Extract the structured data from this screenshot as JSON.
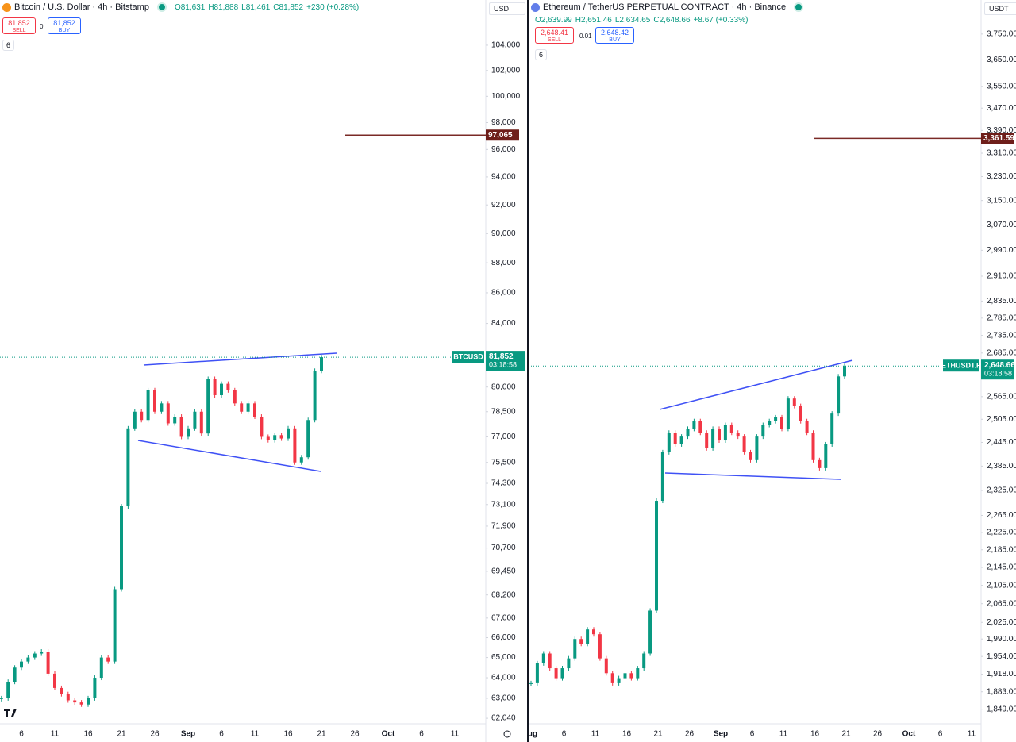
{
  "panels": [
    {
      "title": "Bitcoin / U.S. Dollar · 4h · Bitstamp",
      "ohlc": [
        "O81,631",
        "H81,888",
        "L81,461",
        "C81,852",
        "+230 (+0.28%)"
      ],
      "sell": {
        "price": "81,852",
        "label": "SELL"
      },
      "spread": "0",
      "buy": {
        "price": "81,852",
        "label": "BUY"
      },
      "indicators": "6",
      "currency": "USD",
      "chart_data": {
        "type": "candlestick",
        "scale": "log",
        "ylim": [
          61780,
          107670
        ],
        "yticks": [
          {
            "value": 104000,
            "label": "104,000"
          },
          {
            "value": 102000,
            "label": "102,000"
          },
          {
            "value": 100000,
            "label": "100,000"
          },
          {
            "value": 98000,
            "label": "98,000"
          },
          {
            "value": 96000,
            "label": "96,000"
          },
          {
            "value": 94000,
            "label": "94,000"
          },
          {
            "value": 92000,
            "label": "92,000"
          },
          {
            "value": 90000,
            "label": "90,000"
          },
          {
            "value": 88000,
            "label": "88,000"
          },
          {
            "value": 86000,
            "label": "86,000"
          },
          {
            "value": 84000,
            "label": "84,000"
          },
          {
            "value": 80000,
            "label": "80,000"
          },
          {
            "value": 78500,
            "label": "78,500"
          },
          {
            "value": 77000,
            "label": "77,000"
          },
          {
            "value": 75500,
            "label": "75,500"
          },
          {
            "value": 74300,
            "label": "74,300"
          },
          {
            "value": 73100,
            "label": "73,100"
          },
          {
            "value": 71900,
            "label": "71,900"
          },
          {
            "value": 70700,
            "label": "70,700"
          },
          {
            "value": 69450,
            "label": "69,450"
          },
          {
            "value": 68200,
            "label": "68,200"
          },
          {
            "value": 67000,
            "label": "67,000"
          },
          {
            "value": 66000,
            "label": "66,000"
          },
          {
            "value": 65000,
            "label": "65,000"
          },
          {
            "value": 64000,
            "label": "64,000"
          },
          {
            "value": 63000,
            "label": "63,000"
          },
          {
            "value": 62040,
            "label": "62,040"
          }
        ],
        "values": [
          63000,
          63800,
          64500,
          64800,
          65000,
          65200,
          65300,
          64200,
          63500,
          63200,
          62900,
          62800,
          62700,
          63000,
          64000,
          65000,
          64800,
          68500,
          73000,
          77500,
          78500,
          78000,
          79800,
          78500,
          79000,
          77800,
          78200,
          77000,
          77500,
          78500,
          77200,
          80500,
          79500,
          80200,
          79800,
          79000,
          78500,
          79000,
          78200,
          77000,
          76800,
          77100,
          76900,
          77500,
          75500,
          75800,
          78000,
          81000,
          81852
        ],
        "last_price": {
          "value": 81852,
          "label": "81,852"
        },
        "symbol": "BTCUSD",
        "countdown": "03:18:58",
        "alert": {
          "value": 97065,
          "label": "97,065"
        },
        "time_labels": [
          "6",
          "11",
          "16",
          "21",
          "26",
          "Sep",
          "6",
          "11",
          "16",
          "21",
          "26",
          "Oct",
          "6",
          "11"
        ]
      }
    },
    {
      "title": "Ethereum / TetherUS PERPETUAL CONTRACT · 4h · Binance",
      "ohlc": [
        "O2,639.99",
        "H2,651.46",
        "L2,634.65",
        "C2,648.66",
        "+8.67 (+0.33%)"
      ],
      "sell": {
        "price": "2,648.41",
        "label": "SELL"
      },
      "spread": "0.01",
      "buy": {
        "price": "2,648.42",
        "label": "BUY"
      },
      "indicators": "6",
      "currency": "USDT",
      "chart_data": {
        "type": "candlestick",
        "scale": "log",
        "ylim": [
          1821,
          3886
        ],
        "yticks": [
          {
            "value": 3750,
            "label": "3,750.00"
          },
          {
            "value": 3650,
            "label": "3,650.00"
          },
          {
            "value": 3550,
            "label": "3,550.00"
          },
          {
            "value": 3470,
            "label": "3,470.00"
          },
          {
            "value": 3390,
            "label": "3,390.00"
          },
          {
            "value": 3310,
            "label": "3,310.00"
          },
          {
            "value": 3230,
            "label": "3,230.00"
          },
          {
            "value": 3150,
            "label": "3,150.00"
          },
          {
            "value": 3070,
            "label": "3,070.00"
          },
          {
            "value": 2990,
            "label": "2,990.00"
          },
          {
            "value": 2910,
            "label": "2,910.00"
          },
          {
            "value": 2835,
            "label": "2,835.00"
          },
          {
            "value": 2785,
            "label": "2,785.00"
          },
          {
            "value": 2735,
            "label": "2,735.00"
          },
          {
            "value": 2685,
            "label": "2,685.00"
          },
          {
            "value": 2565,
            "label": "2,565.00"
          },
          {
            "value": 2505,
            "label": "2,505.00"
          },
          {
            "value": 2445,
            "label": "2,445.00"
          },
          {
            "value": 2385,
            "label": "2,385.00"
          },
          {
            "value": 2325,
            "label": "2,325.00"
          },
          {
            "value": 2265,
            "label": "2,265.00"
          },
          {
            "value": 2225,
            "label": "2,225.00"
          },
          {
            "value": 2185,
            "label": "2,185.00"
          },
          {
            "value": 2145,
            "label": "2,145.00"
          },
          {
            "value": 2105,
            "label": "2,105.00"
          },
          {
            "value": 2065,
            "label": "2,065.00"
          },
          {
            "value": 2025,
            "label": "2,025.00"
          },
          {
            "value": 1990,
            "label": "1,990.00"
          },
          {
            "value": 1954,
            "label": "1,954.00"
          },
          {
            "value": 1918,
            "label": "1,918.00"
          },
          {
            "value": 1883,
            "label": "1,883.00"
          },
          {
            "value": 1849,
            "label": "1,849.00"
          }
        ],
        "values": [
          1900,
          1940,
          1960,
          1930,
          1910,
          1930,
          1950,
          1990,
          1980,
          2010,
          2000,
          1950,
          1920,
          1900,
          1910,
          1920,
          1910,
          1930,
          1960,
          2050,
          2300,
          2420,
          2470,
          2440,
          2460,
          2480,
          2500,
          2470,
          2430,
          2480,
          2450,
          2490,
          2470,
          2460,
          2420,
          2400,
          2460,
          2490,
          2500,
          2510,
          2480,
          2560,
          2540,
          2500,
          2470,
          2400,
          2380,
          2440,
          2520,
          2620,
          2648.66
        ],
        "last_price": {
          "value": 2648.66,
          "label": "2,648.66"
        },
        "symbol": "ETHUSDT.P",
        "countdown": "03:18:58",
        "alert": {
          "value": 3361.59,
          "label": "3,361.59"
        },
        "time_labels": [
          "ug",
          "6",
          "11",
          "16",
          "21",
          "26",
          "Sep",
          "6",
          "11",
          "16",
          "21",
          "26",
          "Oct",
          "6",
          "11"
        ]
      }
    }
  ]
}
